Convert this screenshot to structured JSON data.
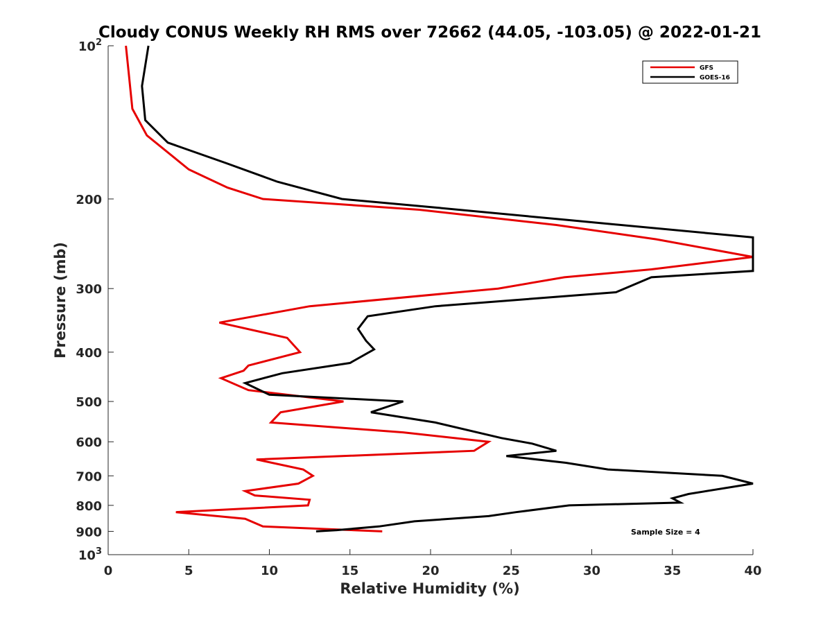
{
  "chart_data": {
    "type": "line",
    "title": "Cloudy CONUS Weekly RH RMS over 72662 (44.05, -103.05) @ 2022-01-21",
    "xlabel": "Relative Humidity (%)",
    "ylabel": "Pressure (mb)",
    "xlim": [
      0,
      40
    ],
    "ylim": [
      100,
      1000
    ],
    "y_scale": "log",
    "y_reversed": true,
    "x_ticks": [
      0,
      5,
      10,
      15,
      20,
      25,
      30,
      35,
      40
    ],
    "y_ticks": [
      {
        "value": 100,
        "base": "10",
        "exp": "2"
      },
      {
        "value": 200,
        "label": "200"
      },
      {
        "value": 300,
        "label": "300"
      },
      {
        "value": 400,
        "label": "400"
      },
      {
        "value": 500,
        "label": "500"
      },
      {
        "value": 600,
        "label": "600"
      },
      {
        "value": 700,
        "label": "700"
      },
      {
        "value": 800,
        "label": "800"
      },
      {
        "value": 900,
        "label": "900"
      },
      {
        "value": 1000,
        "base": "10",
        "exp": "3"
      }
    ],
    "legend_position": "top-right",
    "grid": false,
    "annotation": "Sample Size = 4",
    "series": [
      {
        "name": "GFS",
        "color": "#e60000",
        "points": [
          [
            17.0,
            900
          ],
          [
            9.6,
            880
          ],
          [
            8.5,
            850
          ],
          [
            4.2,
            825
          ],
          [
            12.4,
            800
          ],
          [
            12.5,
            780
          ],
          [
            9.1,
            765
          ],
          [
            8.5,
            750
          ],
          [
            11.8,
            725
          ],
          [
            12.7,
            700
          ],
          [
            12.1,
            680
          ],
          [
            9.2,
            650
          ],
          [
            22.7,
            625
          ],
          [
            23.6,
            600
          ],
          [
            18.3,
            575
          ],
          [
            10.1,
            550
          ],
          [
            10.7,
            525
          ],
          [
            14.6,
            500
          ],
          [
            8.7,
            475
          ],
          [
            7.0,
            450
          ],
          [
            8.4,
            435
          ],
          [
            8.7,
            425
          ],
          [
            11.9,
            400
          ],
          [
            11.1,
            375
          ],
          [
            6.9,
            350
          ],
          [
            12.5,
            325
          ],
          [
            24.2,
            300
          ],
          [
            28.3,
            285
          ],
          [
            33.7,
            275
          ],
          [
            40.0,
            260
          ],
          [
            34.0,
            240
          ],
          [
            27.8,
            225
          ],
          [
            19.3,
            210
          ],
          [
            9.6,
            200
          ],
          [
            7.4,
            190
          ],
          [
            5.0,
            175
          ],
          [
            2.4,
            150
          ],
          [
            1.5,
            133
          ],
          [
            1.3,
            115
          ],
          [
            1.1,
            100
          ]
        ]
      },
      {
        "name": "GOES-16",
        "color": "#000000",
        "points": [
          [
            12.9,
            900
          ],
          [
            14.2,
            895
          ],
          [
            16.8,
            880
          ],
          [
            19.0,
            860
          ],
          [
            23.6,
            840
          ],
          [
            25.3,
            825
          ],
          [
            28.6,
            800
          ],
          [
            35.5,
            790
          ],
          [
            35.0,
            775
          ],
          [
            36.0,
            760
          ],
          [
            40.0,
            725
          ],
          [
            38.1,
            700
          ],
          [
            31.0,
            680
          ],
          [
            28.4,
            660
          ],
          [
            24.7,
            640
          ],
          [
            27.8,
            625
          ],
          [
            26.3,
            605
          ],
          [
            24.4,
            590
          ],
          [
            20.3,
            550
          ],
          [
            16.3,
            525
          ],
          [
            18.3,
            500
          ],
          [
            10.0,
            485
          ],
          [
            8.5,
            460
          ],
          [
            10.8,
            440
          ],
          [
            15.0,
            420
          ],
          [
            16.5,
            395
          ],
          [
            16.0,
            380
          ],
          [
            15.5,
            360
          ],
          [
            16.1,
            340
          ],
          [
            20.3,
            325
          ],
          [
            31.5,
            305
          ],
          [
            33.7,
            285
          ],
          [
            40.0,
            277
          ],
          [
            40.0,
            238
          ],
          [
            28.5,
            220
          ],
          [
            20.4,
            208
          ],
          [
            14.5,
            200
          ],
          [
            10.5,
            185
          ],
          [
            7.3,
            170
          ],
          [
            3.7,
            155
          ],
          [
            2.3,
            140
          ],
          [
            2.1,
            120
          ],
          [
            2.5,
            100
          ]
        ]
      }
    ]
  }
}
